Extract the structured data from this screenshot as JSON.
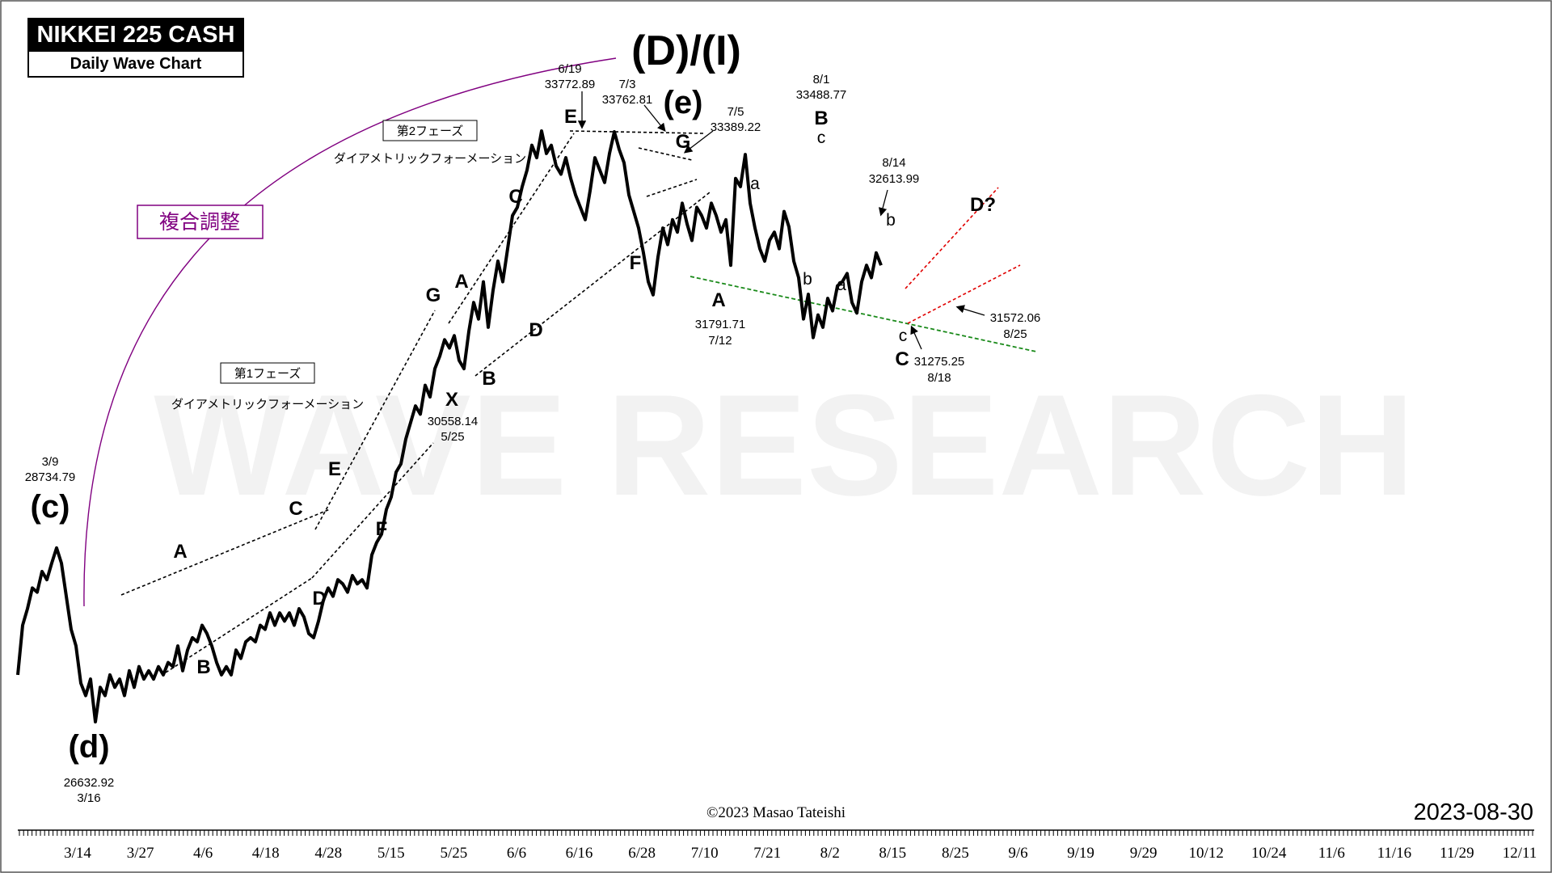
{
  "header": {
    "title": "NIKKEI 225 CASH",
    "subtitle": "Daily Wave Chart",
    "date_stamp": "2023-08-30",
    "copyright": "©2023 Masao Tateishi",
    "watermark": "WAVE RESEARCH"
  },
  "colors": {
    "price_line": "#000000",
    "fukugo_label": "#800080",
    "support_line": "#1a8a1a",
    "channel_line": "#e00000",
    "watermark": "#f2f2f2"
  },
  "chart_data": {
    "type": "line",
    "x_axis_labels": [
      "3/14",
      "3/27",
      "4/6",
      "4/18",
      "4/28",
      "5/15",
      "5/25",
      "6/6",
      "6/16",
      "6/28",
      "7/10",
      "7/21",
      "8/2",
      "8/15",
      "8/25",
      "9/6",
      "9/19",
      "9/29",
      "10/12",
      "10/24",
      "11/6",
      "11/16",
      "11/29",
      "12/11"
    ],
    "series": [
      {
        "values": [
          {
            "x": 0,
            "y": 27200
          },
          {
            "x": 4,
            "y": 27800
          },
          {
            "x": 8,
            "y": 28000
          },
          {
            "x": 12,
            "y": 28250
          },
          {
            "x": 16,
            "y": 28200
          },
          {
            "x": 20,
            "y": 28450
          },
          {
            "x": 24,
            "y": 28350
          },
          {
            "x": 28,
            "y": 28550
          },
          {
            "x": 32,
            "y": 28734.79
          },
          {
            "x": 36,
            "y": 28550
          },
          {
            "x": 40,
            "y": 28150
          },
          {
            "x": 44,
            "y": 27750
          },
          {
            "x": 48,
            "y": 27550
          },
          {
            "x": 52,
            "y": 27100
          },
          {
            "x": 56,
            "y": 26950
          },
          {
            "x": 60,
            "y": 27150
          },
          {
            "x": 64,
            "y": 26632.92
          },
          {
            "x": 68,
            "y": 27050
          },
          {
            "x": 72,
            "y": 26950
          },
          {
            "x": 76,
            "y": 27200
          },
          {
            "x": 80,
            "y": 27050
          },
          {
            "x": 84,
            "y": 27150
          },
          {
            "x": 88,
            "y": 26950
          },
          {
            "x": 92,
            "y": 27250
          },
          {
            "x": 96,
            "y": 27050
          },
          {
            "x": 100,
            "y": 27300
          },
          {
            "x": 104,
            "y": 27150
          },
          {
            "x": 108,
            "y": 27250
          },
          {
            "x": 112,
            "y": 27150
          },
          {
            "x": 116,
            "y": 27300
          },
          {
            "x": 120,
            "y": 27200
          },
          {
            "x": 124,
            "y": 27350
          },
          {
            "x": 128,
            "y": 27300
          },
          {
            "x": 132,
            "y": 27550
          },
          {
            "x": 136,
            "y": 27250
          },
          {
            "x": 140,
            "y": 27500
          },
          {
            "x": 144,
            "y": 27650
          },
          {
            "x": 148,
            "y": 27600
          },
          {
            "x": 152,
            "y": 27800
          },
          {
            "x": 156,
            "y": 27700
          },
          {
            "x": 160,
            "y": 27550
          },
          {
            "x": 164,
            "y": 27350
          },
          {
            "x": 168,
            "y": 27200
          },
          {
            "x": 172,
            "y": 27300
          },
          {
            "x": 176,
            "y": 27200
          },
          {
            "x": 180,
            "y": 27500
          },
          {
            "x": 184,
            "y": 27400
          },
          {
            "x": 188,
            "y": 27600
          },
          {
            "x": 192,
            "y": 27650
          },
          {
            "x": 196,
            "y": 27600
          },
          {
            "x": 200,
            "y": 27800
          },
          {
            "x": 204,
            "y": 27750
          },
          {
            "x": 208,
            "y": 27950
          },
          {
            "x": 212,
            "y": 27800
          },
          {
            "x": 216,
            "y": 27950
          },
          {
            "x": 220,
            "y": 27850
          },
          {
            "x": 224,
            "y": 27950
          },
          {
            "x": 228,
            "y": 27800
          },
          {
            "x": 232,
            "y": 28000
          },
          {
            "x": 236,
            "y": 27900
          },
          {
            "x": 240,
            "y": 27700
          },
          {
            "x": 244,
            "y": 27650
          },
          {
            "x": 248,
            "y": 27850
          },
          {
            "x": 252,
            "y": 28100
          },
          {
            "x": 256,
            "y": 28250
          },
          {
            "x": 260,
            "y": 28150
          },
          {
            "x": 264,
            "y": 28350
          },
          {
            "x": 268,
            "y": 28300
          },
          {
            "x": 272,
            "y": 28200
          },
          {
            "x": 276,
            "y": 28400
          },
          {
            "x": 280,
            "y": 28300
          },
          {
            "x": 284,
            "y": 28350
          },
          {
            "x": 288,
            "y": 28250
          },
          {
            "x": 292,
            "y": 28650
          },
          {
            "x": 296,
            "y": 28800
          },
          {
            "x": 300,
            "y": 28900
          },
          {
            "x": 304,
            "y": 29200
          },
          {
            "x": 308,
            "y": 29350
          },
          {
            "x": 312,
            "y": 29650
          },
          {
            "x": 316,
            "y": 29750
          },
          {
            "x": 320,
            "y": 30050
          },
          {
            "x": 324,
            "y": 30250
          },
          {
            "x": 328,
            "y": 30450
          },
          {
            "x": 332,
            "y": 30350
          },
          {
            "x": 336,
            "y": 30700
          },
          {
            "x": 340,
            "y": 30558.14
          },
          {
            "x": 344,
            "y": 30900
          },
          {
            "x": 348,
            "y": 31050
          },
          {
            "x": 352,
            "y": 31250
          },
          {
            "x": 356,
            "y": 31150
          },
          {
            "x": 360,
            "y": 31300
          },
          {
            "x": 364,
            "y": 31000
          },
          {
            "x": 368,
            "y": 30900
          },
          {
            "x": 372,
            "y": 31350
          },
          {
            "x": 376,
            "y": 31700
          },
          {
            "x": 380,
            "y": 31500
          },
          {
            "x": 384,
            "y": 31950
          },
          {
            "x": 388,
            "y": 31400
          },
          {
            "x": 392,
            "y": 31850
          },
          {
            "x": 396,
            "y": 32200
          },
          {
            "x": 400,
            "y": 31950
          },
          {
            "x": 404,
            "y": 32350
          },
          {
            "x": 408,
            "y": 32750
          },
          {
            "x": 412,
            "y": 32850
          },
          {
            "x": 416,
            "y": 33100
          },
          {
            "x": 420,
            "y": 33300
          },
          {
            "x": 424,
            "y": 33600
          },
          {
            "x": 428,
            "y": 33450
          },
          {
            "x": 432,
            "y": 33772.89
          },
          {
            "x": 436,
            "y": 33500
          },
          {
            "x": 440,
            "y": 33600
          },
          {
            "x": 444,
            "y": 33350
          },
          {
            "x": 448,
            "y": 33250
          },
          {
            "x": 452,
            "y": 33450
          },
          {
            "x": 456,
            "y": 33200
          },
          {
            "x": 460,
            "y": 33000
          },
          {
            "x": 464,
            "y": 32850
          },
          {
            "x": 468,
            "y": 32700
          },
          {
            "x": 472,
            "y": 33050
          },
          {
            "x": 476,
            "y": 33450
          },
          {
            "x": 480,
            "y": 33300
          },
          {
            "x": 484,
            "y": 33150
          },
          {
            "x": 488,
            "y": 33500
          },
          {
            "x": 492,
            "y": 33762.81
          },
          {
            "x": 496,
            "y": 33550
          },
          {
            "x": 500,
            "y": 33389.22
          },
          {
            "x": 504,
            "y": 33000
          },
          {
            "x": 508,
            "y": 32800
          },
          {
            "x": 512,
            "y": 32600
          },
          {
            "x": 516,
            "y": 32300
          },
          {
            "x": 520,
            "y": 31950
          },
          {
            "x": 524,
            "y": 31791.71
          },
          {
            "x": 528,
            "y": 32250
          },
          {
            "x": 532,
            "y": 32600
          },
          {
            "x": 536,
            "y": 32400
          },
          {
            "x": 540,
            "y": 32700
          },
          {
            "x": 544,
            "y": 32550
          },
          {
            "x": 548,
            "y": 32900
          },
          {
            "x": 552,
            "y": 32650
          },
          {
            "x": 556,
            "y": 32450
          },
          {
            "x": 560,
            "y": 32850
          },
          {
            "x": 564,
            "y": 32750
          },
          {
            "x": 568,
            "y": 32600
          },
          {
            "x": 572,
            "y": 32900
          },
          {
            "x": 576,
            "y": 32750
          },
          {
            "x": 580,
            "y": 32550
          },
          {
            "x": 584,
            "y": 32700
          },
          {
            "x": 588,
            "y": 32150
          },
          {
            "x": 592,
            "y": 33200
          },
          {
            "x": 596,
            "y": 33100
          },
          {
            "x": 600,
            "y": 33488.77
          },
          {
            "x": 604,
            "y": 32900
          },
          {
            "x": 608,
            "y": 32600
          },
          {
            "x": 612,
            "y": 32350
          },
          {
            "x": 616,
            "y": 32200
          },
          {
            "x": 620,
            "y": 32450
          },
          {
            "x": 624,
            "y": 32550
          },
          {
            "x": 628,
            "y": 32350
          },
          {
            "x": 632,
            "y": 32800
          },
          {
            "x": 636,
            "y": 32613.99
          },
          {
            "x": 640,
            "y": 32200
          },
          {
            "x": 644,
            "y": 32000
          },
          {
            "x": 648,
            "y": 31500
          },
          {
            "x": 652,
            "y": 31800
          },
          {
            "x": 656,
            "y": 31275.25
          },
          {
            "x": 660,
            "y": 31550
          },
          {
            "x": 664,
            "y": 31400
          },
          {
            "x": 668,
            "y": 31750
          },
          {
            "x": 672,
            "y": 31600
          },
          {
            "x": 676,
            "y": 31900
          },
          {
            "x": 680,
            "y": 31950
          },
          {
            "x": 684,
            "y": 32050
          },
          {
            "x": 688,
            "y": 31700
          },
          {
            "x": 692,
            "y": 31572.06
          },
          {
            "x": 696,
            "y": 31950
          },
          {
            "x": 700,
            "y": 32150
          },
          {
            "x": 704,
            "y": 32000
          },
          {
            "x": 708,
            "y": 32300
          },
          {
            "x": 712,
            "y": 32150
          }
        ]
      }
    ]
  },
  "annotations": {
    "wave_labels": {
      "c_paren": "(c)",
      "d_paren": "(d)",
      "D_I": "(D)/(I)",
      "e_paren": "(e)",
      "A1": "A",
      "B1": "B",
      "C1": "C",
      "D1": "D",
      "E1": "E",
      "F1": "F",
      "G1": "G",
      "X": "X",
      "A2": "A",
      "B2": "B",
      "C2": "C",
      "D2": "D",
      "E2": "E",
      "F2": "F",
      "G2": "G",
      "A3": "A",
      "a1": "a",
      "b1": "b",
      "c1": "c",
      "B3": "B",
      "a2": "a",
      "b2": "b",
      "c2": "c",
      "C3": "C",
      "D_q": "D?"
    },
    "value_labels": {
      "p3_9_date": "3/9",
      "p3_9_val": "28734.79",
      "p3_16_val": "26632.92",
      "p3_16_date": "3/16",
      "p5_25_val": "30558.14",
      "p5_25_date": "5/25",
      "p6_19_date": "6/19",
      "p6_19_val": "33772.89",
      "p7_3_date": "7/3",
      "p7_3_val": "33762.81",
      "p7_5_date": "7/5",
      "p7_5_val": "33389.22",
      "p7_12_val": "31791.71",
      "p7_12_date": "7/12",
      "p8_1_date": "8/1",
      "p8_1_val": "33488.77",
      "p8_14_date": "8/14",
      "p8_14_val": "32613.99",
      "p8_18_val": "31275.25",
      "p8_18_date": "8/18",
      "p8_25_val": "31572.06",
      "p8_25_date": "8/25"
    },
    "phase_boxes": {
      "phase1": "第1フェーズ",
      "phase1_desc": "ダイアメトリックフォーメーション",
      "phase2": "第2フェーズ",
      "phase2_desc": "ダイアメトリックフォーメーション",
      "fukugo": "複合調整"
    }
  }
}
